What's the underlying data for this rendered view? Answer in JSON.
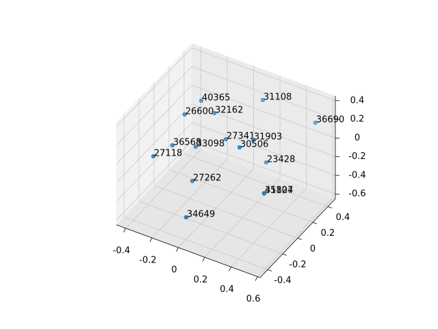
{
  "chart_data": {
    "type": "scatter3d",
    "x": [
      -0.226,
      0.184,
      0.526,
      -0.237,
      -0.07,
      0.075,
      0.225,
      -0.273,
      -0.154,
      0.293,
      -0.361,
      0.267,
      -0.122,
      0.308,
      0.423,
      -0.055
    ],
    "y": [
      0.2,
      0.3,
      0.4,
      0.0,
      0.1,
      0.0,
      0.1,
      -0.1,
      0.0,
      -0.2,
      -0.2,
      0.2,
      -0.1,
      0.1,
      -0.1,
      -0.3
    ],
    "z": [
      0.214,
      0.349,
      0.2,
      0.23,
      0.247,
      0.127,
      0.113,
      -0.035,
      -0.072,
      0.321,
      -0.113,
      -0.191,
      -0.338,
      -0.416,
      -0.187,
      -0.523
    ],
    "labels": [
      "40365",
      "31108",
      "36690",
      "26600",
      "32162",
      "27341",
      "31903",
      "36568",
      "33098",
      "30506",
      "27118",
      "23428",
      "27262",
      "35107",
      "41824",
      "34649"
    ],
    "color": "#1f77b4",
    "xlim": [
      -0.47,
      0.62
    ],
    "ylim": [
      -0.5,
      0.5
    ],
    "zlim": [
      -0.65,
      0.45
    ],
    "xticks": [
      -0.4,
      -0.2,
      0.0,
      0.2,
      0.4,
      0.6
    ],
    "yticks": [
      -0.4,
      -0.2,
      0.0,
      0.2,
      0.4
    ],
    "zticks": [
      -0.6,
      -0.4,
      -0.2,
      0.0,
      0.2,
      0.4
    ],
    "grid": true
  }
}
